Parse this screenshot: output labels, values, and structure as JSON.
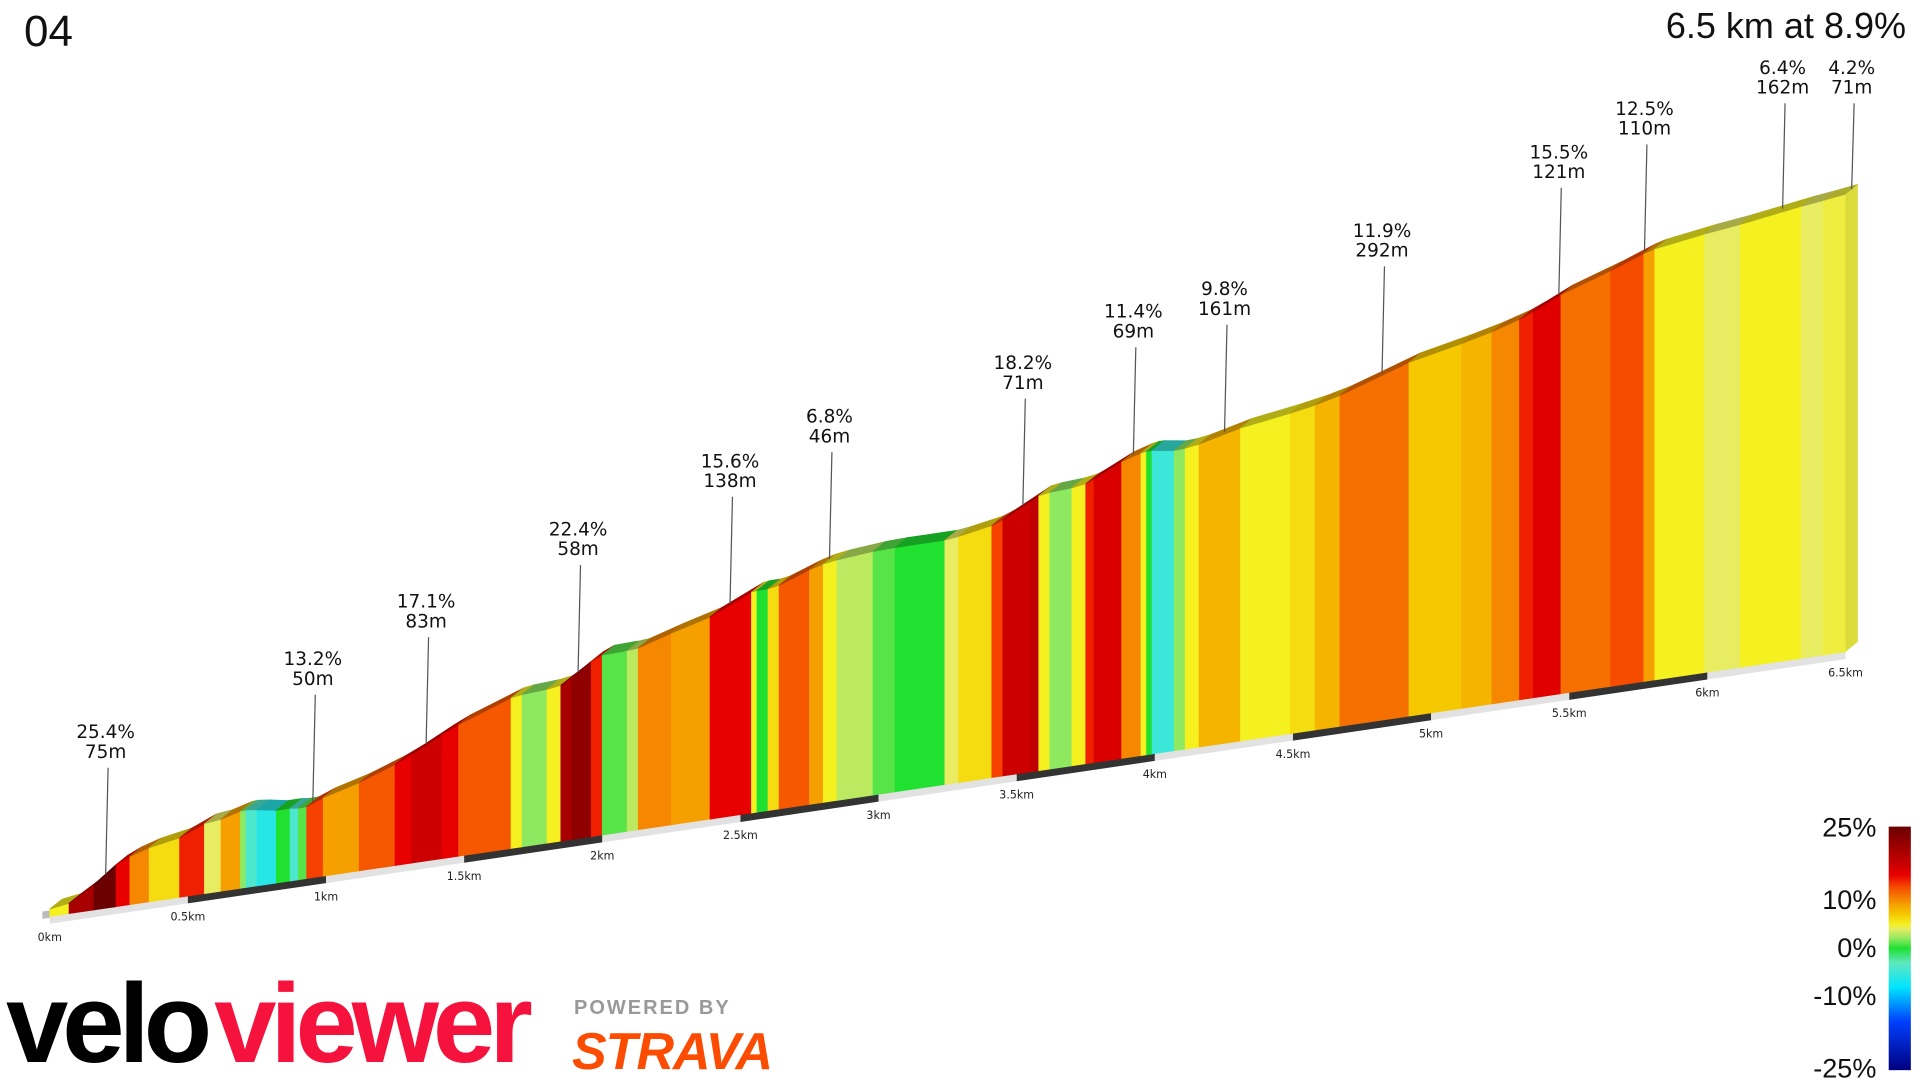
{
  "header": {
    "title": "04",
    "summary": "6.5 km at 8.9%"
  },
  "branding": {
    "velo": "velo",
    "viewer": "viewer",
    "powered_by": "POWERED BY",
    "strava": "STRAVA"
  },
  "chart_data": {
    "type": "area",
    "subtype": "3d-elevation-profile-colored-by-gradient",
    "distance_range_km": [
      0,
      6.5
    ],
    "x_tick_labels": [
      "0km",
      "0.5km",
      "1km",
      "1.5km",
      "2km",
      "2.5km",
      "3km",
      "3.5km",
      "4km",
      "4.5km",
      "5km",
      "5.5km",
      "6km",
      "6.5km"
    ],
    "segments_end_km_grade": [
      [
        0.07,
        5
      ],
      [
        0.16,
        20
      ],
      [
        0.24,
        25
      ],
      [
        0.29,
        15
      ],
      [
        0.36,
        10
      ],
      [
        0.47,
        6
      ],
      [
        0.56,
        14
      ],
      [
        0.62,
        4
      ],
      [
        0.69,
        9
      ],
      [
        0.71,
        2
      ],
      [
        0.75,
        -4
      ],
      [
        0.82,
        -6
      ],
      [
        0.87,
        0
      ],
      [
        0.9,
        -4
      ],
      [
        0.93,
        1
      ],
      [
        0.99,
        13
      ],
      [
        1.12,
        9
      ],
      [
        1.25,
        12
      ],
      [
        1.31,
        15
      ],
      [
        1.42,
        17
      ],
      [
        1.48,
        15
      ],
      [
        1.67,
        12
      ],
      [
        1.71,
        5
      ],
      [
        1.8,
        2
      ],
      [
        1.85,
        5
      ],
      [
        1.89,
        20
      ],
      [
        1.96,
        22
      ],
      [
        2.0,
        14
      ],
      [
        2.09,
        1
      ],
      [
        2.13,
        3
      ],
      [
        2.25,
        10
      ],
      [
        2.39,
        9
      ],
      [
        2.54,
        15
      ],
      [
        2.56,
        5
      ],
      [
        2.6,
        0
      ],
      [
        2.64,
        6
      ],
      [
        2.75,
        12
      ],
      [
        2.8,
        9
      ],
      [
        2.85,
        5
      ],
      [
        2.98,
        3
      ],
      [
        3.06,
        1
      ],
      [
        3.24,
        0
      ],
      [
        3.29,
        4
      ],
      [
        3.41,
        6
      ],
      [
        3.45,
        13
      ],
      [
        3.55,
        17
      ],
      [
        3.58,
        18
      ],
      [
        3.62,
        5
      ],
      [
        3.7,
        2
      ],
      [
        3.75,
        5
      ],
      [
        3.78,
        14
      ],
      [
        3.88,
        16
      ],
      [
        3.95,
        10
      ],
      [
        3.97,
        5
      ],
      [
        3.99,
        0
      ],
      [
        4.07,
        -5
      ],
      [
        4.11,
        2
      ],
      [
        4.16,
        5
      ],
      [
        4.31,
        8
      ],
      [
        4.49,
        5
      ],
      [
        4.58,
        6
      ],
      [
        4.67,
        8
      ],
      [
        4.92,
        11
      ],
      [
        5.11,
        7
      ],
      [
        5.22,
        8
      ],
      [
        5.32,
        10
      ],
      [
        5.37,
        14
      ],
      [
        5.47,
        15.5
      ],
      [
        5.65,
        11
      ],
      [
        5.77,
        12.5
      ],
      [
        5.81,
        9
      ],
      [
        5.99,
        5
      ],
      [
        6.12,
        4
      ],
      [
        6.34,
        5
      ],
      [
        6.42,
        4
      ],
      [
        6.5,
        4.5
      ]
    ],
    "annotations": [
      {
        "km": 0.18,
        "grade": "25.4%",
        "length": "75m"
      },
      {
        "km": 0.93,
        "grade": "13.2%",
        "length": "50m"
      },
      {
        "km": 1.34,
        "grade": "17.1%",
        "length": "83m"
      },
      {
        "km": 1.89,
        "grade": "22.4%",
        "length": "58m"
      },
      {
        "km": 2.44,
        "grade": "15.6%",
        "length": "138m"
      },
      {
        "km": 2.8,
        "grade": "6.8%",
        "length": "46m"
      },
      {
        "km": 3.5,
        "grade": "18.2%",
        "length": "71m"
      },
      {
        "km": 3.9,
        "grade": "11.4%",
        "length": "69m"
      },
      {
        "km": 4.23,
        "grade": "9.8%",
        "length": "161m"
      },
      {
        "km": 4.8,
        "grade": "11.9%",
        "length": "292m"
      },
      {
        "km": 5.44,
        "grade": "15.5%",
        "length": "121m"
      },
      {
        "km": 5.75,
        "grade": "12.5%",
        "length": "110m"
      },
      {
        "km": 6.25,
        "grade": "6.4%",
        "length": "162m"
      },
      {
        "km": 6.5,
        "grade": "4.2%",
        "length": "71m"
      }
    ],
    "legend": {
      "labels": [
        "25%",
        "10%",
        "0%",
        "-10%",
        "-25%"
      ],
      "range": [
        -25,
        25
      ],
      "placement": "bottom-right"
    },
    "colors": {
      "-25": "#00007f",
      "-15": "#0040ff",
      "-8": "#00e5ff",
      "-3": "#60e8c0",
      "0": "#20e030",
      "2": "#8ee860",
      "4": "#e8ec60",
      "5": "#f5f020",
      "7": "#f5c800",
      "9": "#f5a000",
      "11": "#f57000",
      "13": "#f54000",
      "15": "#e80000",
      "18": "#c00000",
      "25": "#6b0000"
    }
  }
}
